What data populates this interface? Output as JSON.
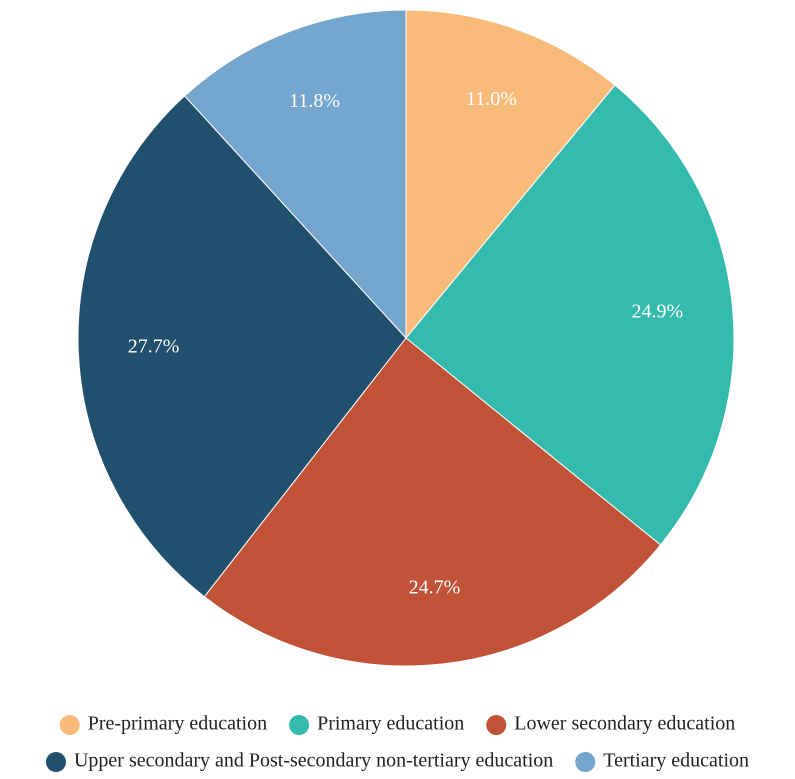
{
  "chart_data": {
    "type": "pie",
    "title": "",
    "categories": [
      "Pre-primary education",
      "Primary education",
      "Lower secondary education",
      "Upper secondary and Post-secondary non-tertiary education",
      "Tertiary education"
    ],
    "values": [
      11.0,
      24.9,
      24.7,
      27.7,
      11.8
    ],
    "value_labels": [
      "11.0%",
      "24.9%",
      "24.7%",
      "27.7%",
      "11.8%"
    ],
    "colors": [
      "#F9BB79",
      "#34BBAD",
      "#C05238",
      "#21506E",
      "#74A5CC"
    ],
    "start_angle": "12 o'clock",
    "direction": "clockwise",
    "legend": {
      "position": "bottom",
      "marker": "circle"
    }
  }
}
